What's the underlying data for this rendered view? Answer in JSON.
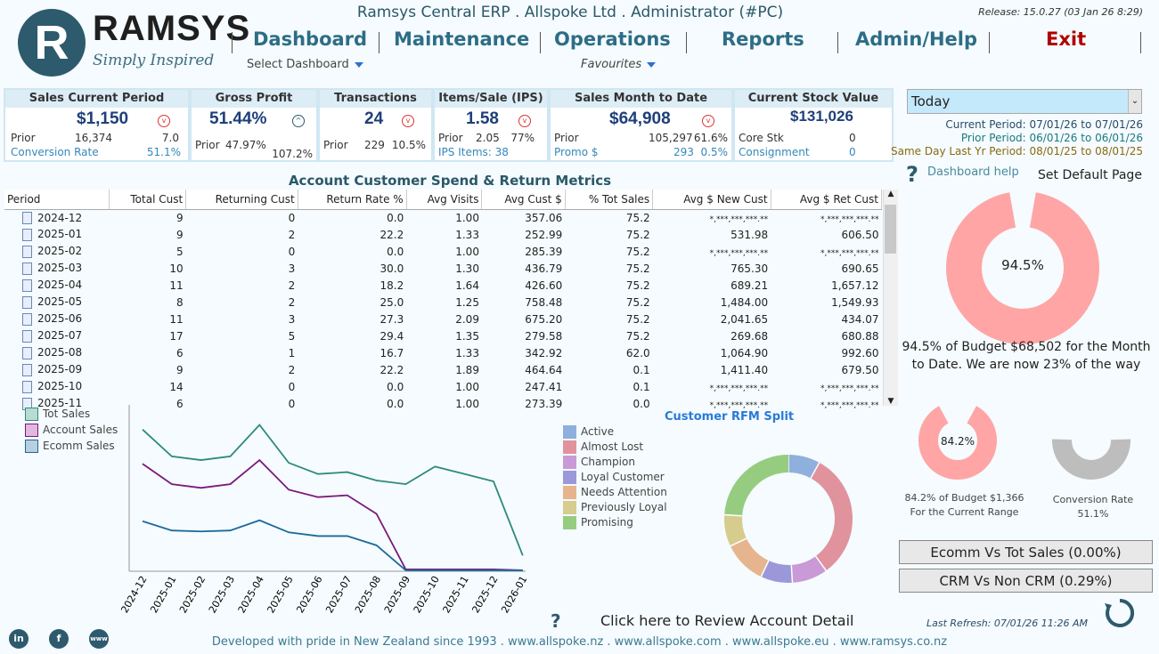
{
  "header": {
    "logo_letter": "R",
    "logo_name": "RAMSYS",
    "logo_tagline": "Simply Inspired",
    "app_title": "Ramsys Central ERP . Allspoke Ltd . Administrator (#PC)",
    "release": "Release: 15.0.27 (03 Jan 26  8:29)",
    "nav": [
      "Dashboard",
      "Maintenance",
      "Operations",
      "Reports",
      "Admin/Help",
      "Exit"
    ],
    "select_dashboard": "Select Dashboard",
    "favourites": "Favourites"
  },
  "kpis": {
    "sales": {
      "title": "Sales Current Period",
      "value": "$1,150",
      "prior_label": "Prior",
      "prior": "16,374",
      "ratio": "7.0",
      "conv_label": "Conversion Rate",
      "conv": "51.1%",
      "trend": "down"
    },
    "gp": {
      "title": "Gross Profit",
      "value": "51.44%",
      "prior_label": "Prior",
      "prior": "47.97%",
      "ratio": "107.2%",
      "trend": "up"
    },
    "trans": {
      "title": "Transactions",
      "value": "24",
      "prior_label": "Prior",
      "prior": "229",
      "ratio": "10.5%",
      "trend": "down"
    },
    "ips": {
      "title": "Items/Sale (IPS)",
      "value": "1.58",
      "prior_label": "Prior",
      "prior": "2.05",
      "ratio": "77%",
      "items": "IPS Items: 38",
      "trend": "down"
    },
    "mtd": {
      "title": "Sales Month to Date",
      "value": "$64,908",
      "prior_label": "Prior",
      "prior": "105,297",
      "ratio": "61.6%",
      "promo_label": "Promo $",
      "promo": "293",
      "promo_pct": "0.5%",
      "trend": "down"
    },
    "stock": {
      "title": "Current Stock Value",
      "value": "$131,026",
      "core_label": "Core Stk",
      "core": "0",
      "consign_label": "Consignment",
      "consign": "0"
    }
  },
  "metrics": {
    "title": "Account Customer Spend & Return Metrics",
    "columns": [
      "Period",
      "Total Cust",
      "Returning Cust",
      "Return Rate %",
      "Avg Visits",
      "Avg Cust $",
      "% Tot Sales",
      "Avg $ New Cust",
      "Avg $ Ret Cust"
    ],
    "rows": [
      [
        "2024-12",
        "9",
        "0",
        "0.0",
        "1.00",
        "357.06",
        "75.2",
        "*,***,***,***.**",
        "*,***,***,***.**"
      ],
      [
        "2025-01",
        "9",
        "2",
        "22.2",
        "1.33",
        "252.99",
        "75.2",
        "531.98",
        "606.50"
      ],
      [
        "2025-02",
        "5",
        "0",
        "0.0",
        "1.00",
        "285.39",
        "75.2",
        "*,***,***,***.**",
        "*,***,***,***.**"
      ],
      [
        "2025-03",
        "10",
        "3",
        "30.0",
        "1.30",
        "436.79",
        "75.2",
        "765.30",
        "690.65"
      ],
      [
        "2025-04",
        "11",
        "2",
        "18.2",
        "1.64",
        "426.60",
        "75.2",
        "689.21",
        "1,657.12"
      ],
      [
        "2025-05",
        "8",
        "2",
        "25.0",
        "1.25",
        "758.48",
        "75.2",
        "1,484.00",
        "1,549.93"
      ],
      [
        "2025-06",
        "11",
        "3",
        "27.3",
        "2.09",
        "675.20",
        "75.2",
        "2,041.65",
        "434.07"
      ],
      [
        "2025-07",
        "17",
        "5",
        "29.4",
        "1.35",
        "279.58",
        "75.2",
        "269.68",
        "680.88"
      ],
      [
        "2025-08",
        "6",
        "1",
        "16.7",
        "1.33",
        "342.92",
        "62.0",
        "1,064.90",
        "992.60"
      ],
      [
        "2025-09",
        "9",
        "2",
        "22.2",
        "1.89",
        "464.64",
        "0.1",
        "1,411.40",
        "679.50"
      ],
      [
        "2025-10",
        "14",
        "0",
        "0.0",
        "1.00",
        "247.41",
        "0.1",
        "*,***,***,***.**",
        "*,***,***,***.**"
      ],
      [
        "2025-11",
        "6",
        "0",
        "0.0",
        "1.00",
        "273.39",
        "0.0",
        "*,***,***,***.**",
        "*,***,***,***.**"
      ]
    ]
  },
  "period": {
    "selected": "Today",
    "current": "Current Period: 07/01/26 to 07/01/26",
    "prior": "Prior Period: 06/01/26 to 06/01/26",
    "last_year": "Same Day Last Yr Period: 08/01/25 to 08/01/25",
    "help": "Dashboard help",
    "set_default": "Set Default Page"
  },
  "gauges": {
    "budget_month": {
      "value": 94.5,
      "label": "94.5%",
      "text": "94.5% of Budget $68,502 for the Month to Date. We are now 23% of the way through",
      "color": "#ffa5a5"
    },
    "budget_range": {
      "value": 84.2,
      "label": "84.2%",
      "text1": "84.2% of Budget $1,366",
      "text2": "For the Current Range",
      "color": "#ffa5a5"
    },
    "conversion": {
      "value": 51.1,
      "label": "Conversion Rate",
      "value_text": "51.1%",
      "color": "#bdbdbd"
    }
  },
  "buttons": {
    "ecomm": "Ecomm Vs Tot Sales  (0.00%)",
    "crm": "CRM Vs Non CRM  (0.29%)",
    "review": "Click here to Review Account Detail"
  },
  "last_refresh": "Last Refresh: 07/01/26 11:26 AM",
  "footer": "Developed with pride in New Zealand since 1993 . www.allspoke.nz . www.allspoke.com . www.allspoke.eu . www.ramsys.co.nz",
  "social": [
    "in",
    "f",
    "www"
  ],
  "chart_data": [
    {
      "type": "line",
      "categories": [
        "2024-12",
        "2025-01",
        "2025-02",
        "2025-03",
        "2025-04",
        "2025-05",
        "2025-06",
        "2025-07",
        "2025-08",
        "2025-09",
        "2025-10",
        "2025-11",
        "2025-12",
        "2026-01"
      ],
      "legend_position": "top-left",
      "grid": false,
      "series": [
        {
          "name": "Tot Sales",
          "color": "#2e8a7a",
          "values": [
            153,
            124,
            120,
            124,
            158,
            117,
            105,
            107,
            98,
            94,
            113,
            105,
            97,
            17
          ]
        },
        {
          "name": "Account Sales",
          "color": "#7a1a7a",
          "values": [
            116,
            94,
            90,
            94,
            120,
            88,
            80,
            82,
            62,
            2,
            2,
            2,
            2,
            1
          ]
        },
        {
          "name": "Ecomm Sales",
          "color": "#1a6a9a",
          "values": [
            54,
            44,
            43,
            44,
            55,
            42,
            38,
            38,
            28,
            1,
            1,
            1,
            1,
            1
          ]
        }
      ]
    },
    {
      "type": "pie",
      "title": "Customer RFM Split",
      "donut": true,
      "legend_position": "left",
      "categories": [
        "Active",
        "Almost Lost",
        "Champion",
        "Loyal Customer",
        "Needs Attention",
        "Previously Loyal",
        "Promising"
      ],
      "values": [
        8,
        32,
        9,
        8,
        11,
        8,
        24
      ],
      "colors": [
        "#8fb0dc",
        "#e0939d",
        "#c99ad6",
        "#9a98d8",
        "#e6b58e",
        "#d6cc8e",
        "#96cc80"
      ]
    }
  ]
}
